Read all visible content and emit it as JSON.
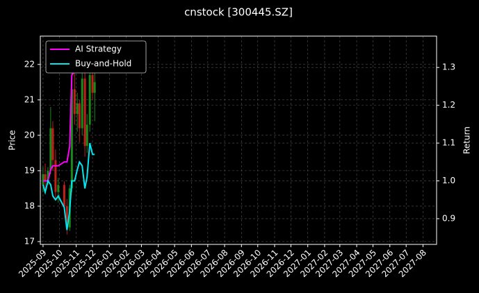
{
  "chart_data": {
    "type": "candlestick",
    "title": "cnstock [300445.SZ]",
    "ylabel": "Price",
    "y2label": "Return",
    "x": [
      "2025-09-01",
      "2025-09-05",
      "2025-09-10",
      "2025-09-15",
      "2025-09-19",
      "2025-09-24",
      "2025-09-29",
      "2025-10-10",
      "2025-10-15",
      "2025-10-20",
      "2025-10-24",
      "2025-10-29",
      "2025-11-03",
      "2025-11-07",
      "2025-11-12",
      "2025-11-17",
      "2025-11-21",
      "2025-11-26",
      "2025-12-01",
      "2025-12-05"
    ],
    "candles": {
      "open": [
        18.6,
        18.9,
        18.7,
        19.0,
        20.2,
        19.3,
        18.4,
        18.6,
        18.0,
        17.4,
        18.5,
        21.3,
        20.6,
        20.9,
        20.2,
        21.6,
        19.7,
        20.3,
        21.7,
        21.2
      ],
      "high": [
        19.1,
        19.2,
        19.1,
        20.8,
        20.4,
        19.6,
        18.8,
        18.7,
        18.2,
        18.6,
        21.9,
        21.8,
        21.2,
        21.0,
        22.1,
        21.8,
        20.6,
        22.0,
        22.5,
        22.0
      ],
      "low": [
        18.4,
        18.5,
        18.6,
        18.9,
        19.0,
        18.2,
        18.1,
        17.9,
        17.2,
        17.3,
        18.4,
        20.3,
        20.1,
        19.8,
        20.0,
        19.4,
        19.5,
        20.1,
        21.0,
        20.4
      ],
      "close": [
        18.9,
        18.7,
        19.0,
        20.2,
        19.3,
        18.4,
        18.6,
        18.0,
        17.4,
        18.5,
        21.3,
        20.6,
        20.9,
        20.2,
        21.6,
        19.7,
        20.3,
        21.7,
        21.2,
        21.5
      ],
      "up_color": "#1a8a1a",
      "down_color": "#c0201a"
    },
    "series": [
      {
        "name": "AI Strategy",
        "color": "#ff00ff",
        "axis": "y2",
        "values": [
          1.0,
          1.0,
          1.0,
          1.03,
          1.04,
          1.04,
          1.04,
          1.05,
          1.05,
          1.09,
          1.28,
          1.29,
          1.29,
          1.29,
          1.3,
          1.31,
          1.31,
          1.31,
          1.31,
          1.31
        ]
      },
      {
        "name": "Buy-and-Hold",
        "color": "#00e5ee",
        "axis": "y2",
        "values": [
          0.99,
          0.97,
          1.0,
          0.99,
          0.96,
          0.95,
          0.96,
          0.93,
          0.87,
          0.92,
          1.0,
          1.0,
          1.03,
          1.05,
          1.04,
          0.98,
          1.01,
          1.1,
          1.07,
          1.07
        ]
      }
    ],
    "xlim": [
      "2025-08-27",
      "2027-08-26"
    ],
    "xticks": [
      {
        "value": "2025-09-01",
        "label": "2025-09"
      },
      {
        "value": "2025-10-01",
        "label": "2025-10"
      },
      {
        "value": "2025-11-01",
        "label": "2025-11"
      },
      {
        "value": "2025-12-01",
        "label": "2025-12"
      },
      {
        "value": "2026-01-01",
        "label": "2026-01"
      },
      {
        "value": "2026-02-01",
        "label": "2026-02"
      },
      {
        "value": "2026-03-01",
        "label": "2026-03"
      },
      {
        "value": "2026-04-01",
        "label": "2026-04"
      },
      {
        "value": "2026-05-01",
        "label": "2026-05"
      },
      {
        "value": "2026-06-01",
        "label": "2026-06"
      },
      {
        "value": "2026-07-01",
        "label": "2026-07"
      },
      {
        "value": "2026-08-01",
        "label": "2026-08"
      },
      {
        "value": "2026-09-01",
        "label": "2026-09"
      },
      {
        "value": "2026-10-01",
        "label": "2026-10"
      },
      {
        "value": "2026-11-01",
        "label": "2026-11"
      },
      {
        "value": "2026-12-01",
        "label": "2026-12"
      },
      {
        "value": "2027-01-01",
        "label": "2027-01"
      },
      {
        "value": "2027-02-01",
        "label": "2027-02"
      },
      {
        "value": "2027-03-01",
        "label": "2027-03"
      },
      {
        "value": "2027-04-01",
        "label": "2027-04"
      },
      {
        "value": "2027-05-01",
        "label": "2027-05"
      },
      {
        "value": "2027-06-01",
        "label": "2027-06"
      },
      {
        "value": "2027-07-01",
        "label": "2027-07"
      },
      {
        "value": "2027-08-01",
        "label": "2027-08"
      }
    ],
    "ylim": [
      16.92,
      22.8
    ],
    "yticks": [
      17,
      18,
      19,
      20,
      21,
      22
    ],
    "y2lim": [
      0.832,
      1.383
    ],
    "y2ticks": [
      {
        "value": 0.9,
        "label": "0.9"
      },
      {
        "value": 1,
        "label": "1.0"
      },
      {
        "value": 1.1,
        "label": "1.1"
      },
      {
        "value": 1.2,
        "label": "1.2"
      },
      {
        "value": 1.3,
        "label": "1.3"
      }
    ],
    "grid": true,
    "legend": "upper left"
  }
}
